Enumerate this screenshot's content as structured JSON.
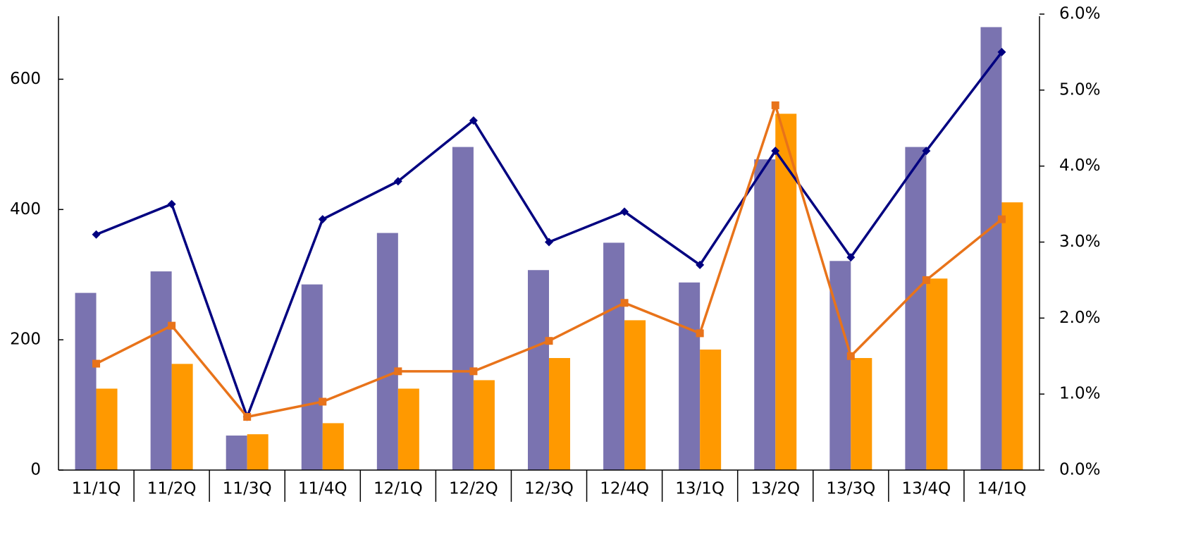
{
  "chart_data": {
    "type": "bar",
    "categories": [
      "11/1Q",
      "11/2Q",
      "11/3Q",
      "11/4Q",
      "12/1Q",
      "12/2Q",
      "12/3Q",
      "12/4Q",
      "13/1Q",
      "13/2Q",
      "13/3Q",
      "13/4Q",
      "14/1Q"
    ],
    "series": [
      {
        "type": "bar",
        "color": "#7a73b0",
        "values": [
          272,
          305,
          53,
          285,
          364,
          496,
          307,
          349,
          288,
          477,
          321,
          496,
          680
        ]
      },
      {
        "type": "bar",
        "color": "#ff9900",
        "values": [
          125,
          163,
          55,
          72,
          125,
          138,
          172,
          230,
          185,
          547,
          172,
          294,
          411
        ]
      },
      {
        "type": "line",
        "axis": "y2",
        "color": "#000080",
        "marker": "diamond",
        "values": [
          3.1,
          3.5,
          0.7,
          3.3,
          3.8,
          4.6,
          3.0,
          3.4,
          2.7,
          4.2,
          2.8,
          4.2,
          5.5
        ]
      },
      {
        "type": "line",
        "axis": "y2",
        "color": "#e8731a",
        "marker": "square",
        "values": [
          1.4,
          1.9,
          0.7,
          0.9,
          1.3,
          1.3,
          1.7,
          2.2,
          1.8,
          4.8,
          1.5,
          2.5,
          3.3
        ]
      }
    ],
    "ylim": [
      0,
      700
    ],
    "yticks": [
      0,
      200,
      400,
      600
    ],
    "y2lim": [
      0,
      6
    ],
    "y2ticks": [
      {
        "value": 0,
        "label": "0.0%"
      },
      {
        "value": 1,
        "label": "1.0%"
      },
      {
        "value": 2,
        "label": "2.0%"
      },
      {
        "value": 3,
        "label": "3.0%"
      },
      {
        "value": 4,
        "label": "4.0%"
      },
      {
        "value": 5,
        "label": "5.0%"
      },
      {
        "value": 6,
        "label": "6.0%"
      }
    ]
  }
}
